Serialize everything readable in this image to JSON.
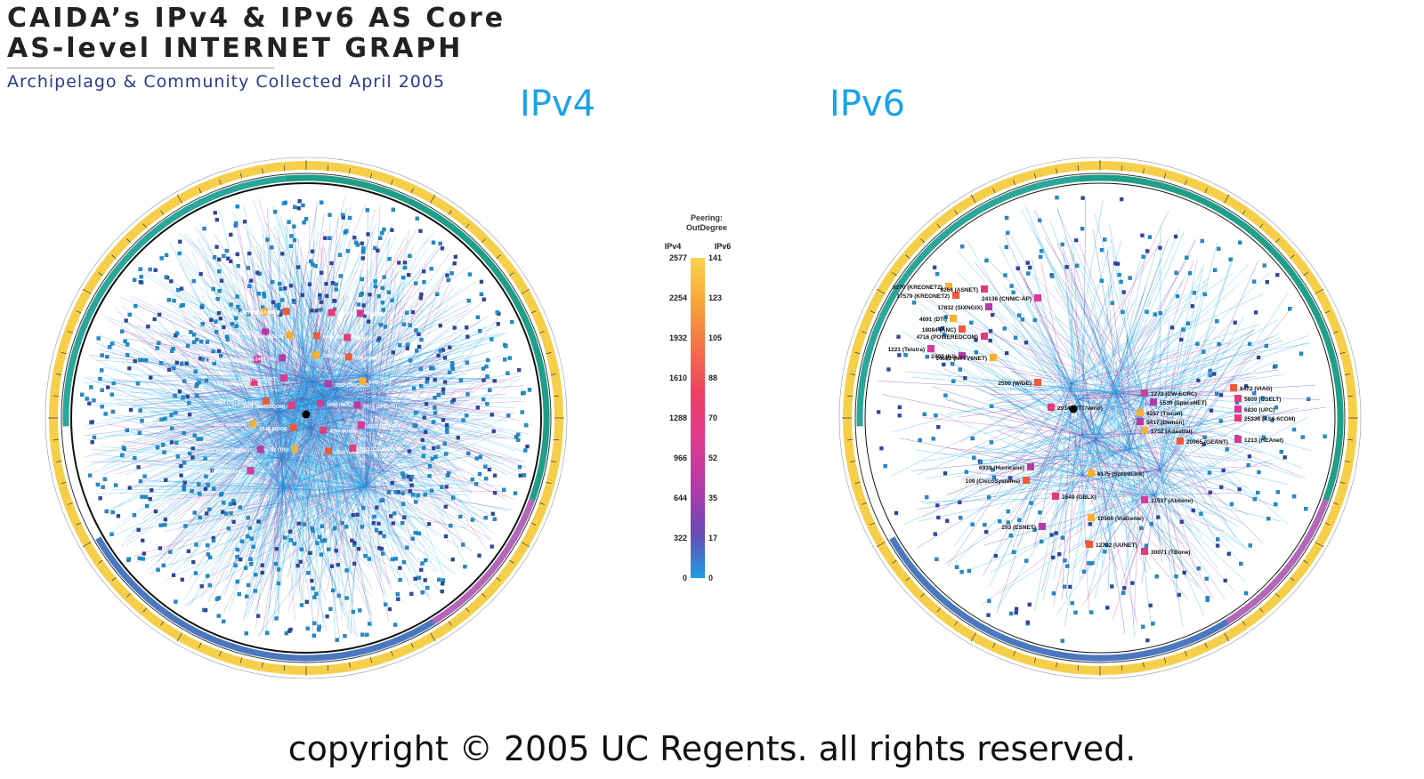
{
  "header": {
    "title_line1": "CAIDA’s IPv4 & IPv6 AS Core",
    "title_line2": "AS-level INTERNET GRAPH",
    "subtitle": "Archipelago & Community Collected April 2005"
  },
  "labels": {
    "ipv4": "IPv4",
    "ipv6": "IPv6"
  },
  "legend": {
    "title_line1": "Peering:",
    "title_line2": "OutDegree",
    "ipv4_header": "IPv4",
    "ipv6_header": "IPv6",
    "ipv4_ticks": [
      "2577",
      "2254",
      "1932",
      "1610",
      "1288",
      "966",
      "644",
      "322",
      "0"
    ],
    "ipv6_ticks": [
      "141",
      "123",
      "105",
      "88",
      "70",
      "52",
      "35",
      "17",
      "0"
    ],
    "gradient_colors": [
      "#fbd34a",
      "#f7a43a",
      "#f46e4a",
      "#ee3f63",
      "#e03a8f",
      "#b43aa8",
      "#6c48b4",
      "#1a9fe2"
    ]
  },
  "ipv4_nodes": [
    "2914 (VERIO)",
    "701 (UUNET)",
    "1239 (SPRINTLINK)",
    "7018 (ATT)",
    "3356 (LEVEL3)",
    "3549 (GBLX)",
    "6461 (ABOVENET)",
    "2828 (XO)",
    "4323 (TWTELECOM)",
    "2497 (IIJ)",
    "3561 (SAVVIS)",
    "209 (QWEST)",
    "174 (COGENT)",
    "1299 (TELIANET)",
    "3257 (TISCALI)",
    "5400 (BT)",
    "6453 (TELEGLOBE)",
    "3303 (SWISSCOM)",
    "1668 (AOL)",
    "7473 (SINGTEL)",
    "4637 (REACH)",
    "2516 (KDDI)",
    "4766 (KIXS)",
    "3320 (DTAG)",
    "5511 (OPENTRANSIT)",
    "6762 (TIS)",
    "4134 (CHINANET)",
    "2152 (CSUNET)",
    "6939 (HURRICANE)"
  ],
  "ipv6_nodes": [
    "9270 (KREONET2)",
    "17579 (KREONET2)",
    "9264 (ASNET)",
    "24136 (CNNIC-AP)",
    "17832 (SIXNGIX)",
    "4691 (DTI)",
    "18084 (ANC)",
    "4716 (POWEREDCOM)",
    "1221 (Telstra)",
    "2497 (IIJ)",
    "14692 (NTTV6NET)",
    "2500 (WIDE)",
    "2914 (NTT/Verio)",
    "1273 (CW-ECRC)",
    "5539 (SpaceNET)",
    "3257 (Tiscali)",
    "8472 (VIAG)",
    "5609 (CSELT)",
    "6830 (UPC)",
    "5417 (Demon)",
    "1752 (Adastral)",
    "20965 (GEANT)",
    "25336 (XS6-6COM)",
    "1213 (HEAnet)",
    "6939 (Hurricane)",
    "6175 (SprintLink)",
    "109 (CiscoSystems)",
    "3549 (GBLX)",
    "11537 (Abilene)",
    "293 (ESNET)",
    "10566 (ViaGenie)",
    "12702 (UUNET)",
    "30071 (TBone)"
  ],
  "copyright": "copyright © 2005 UC Regents. all rights reserved."
}
